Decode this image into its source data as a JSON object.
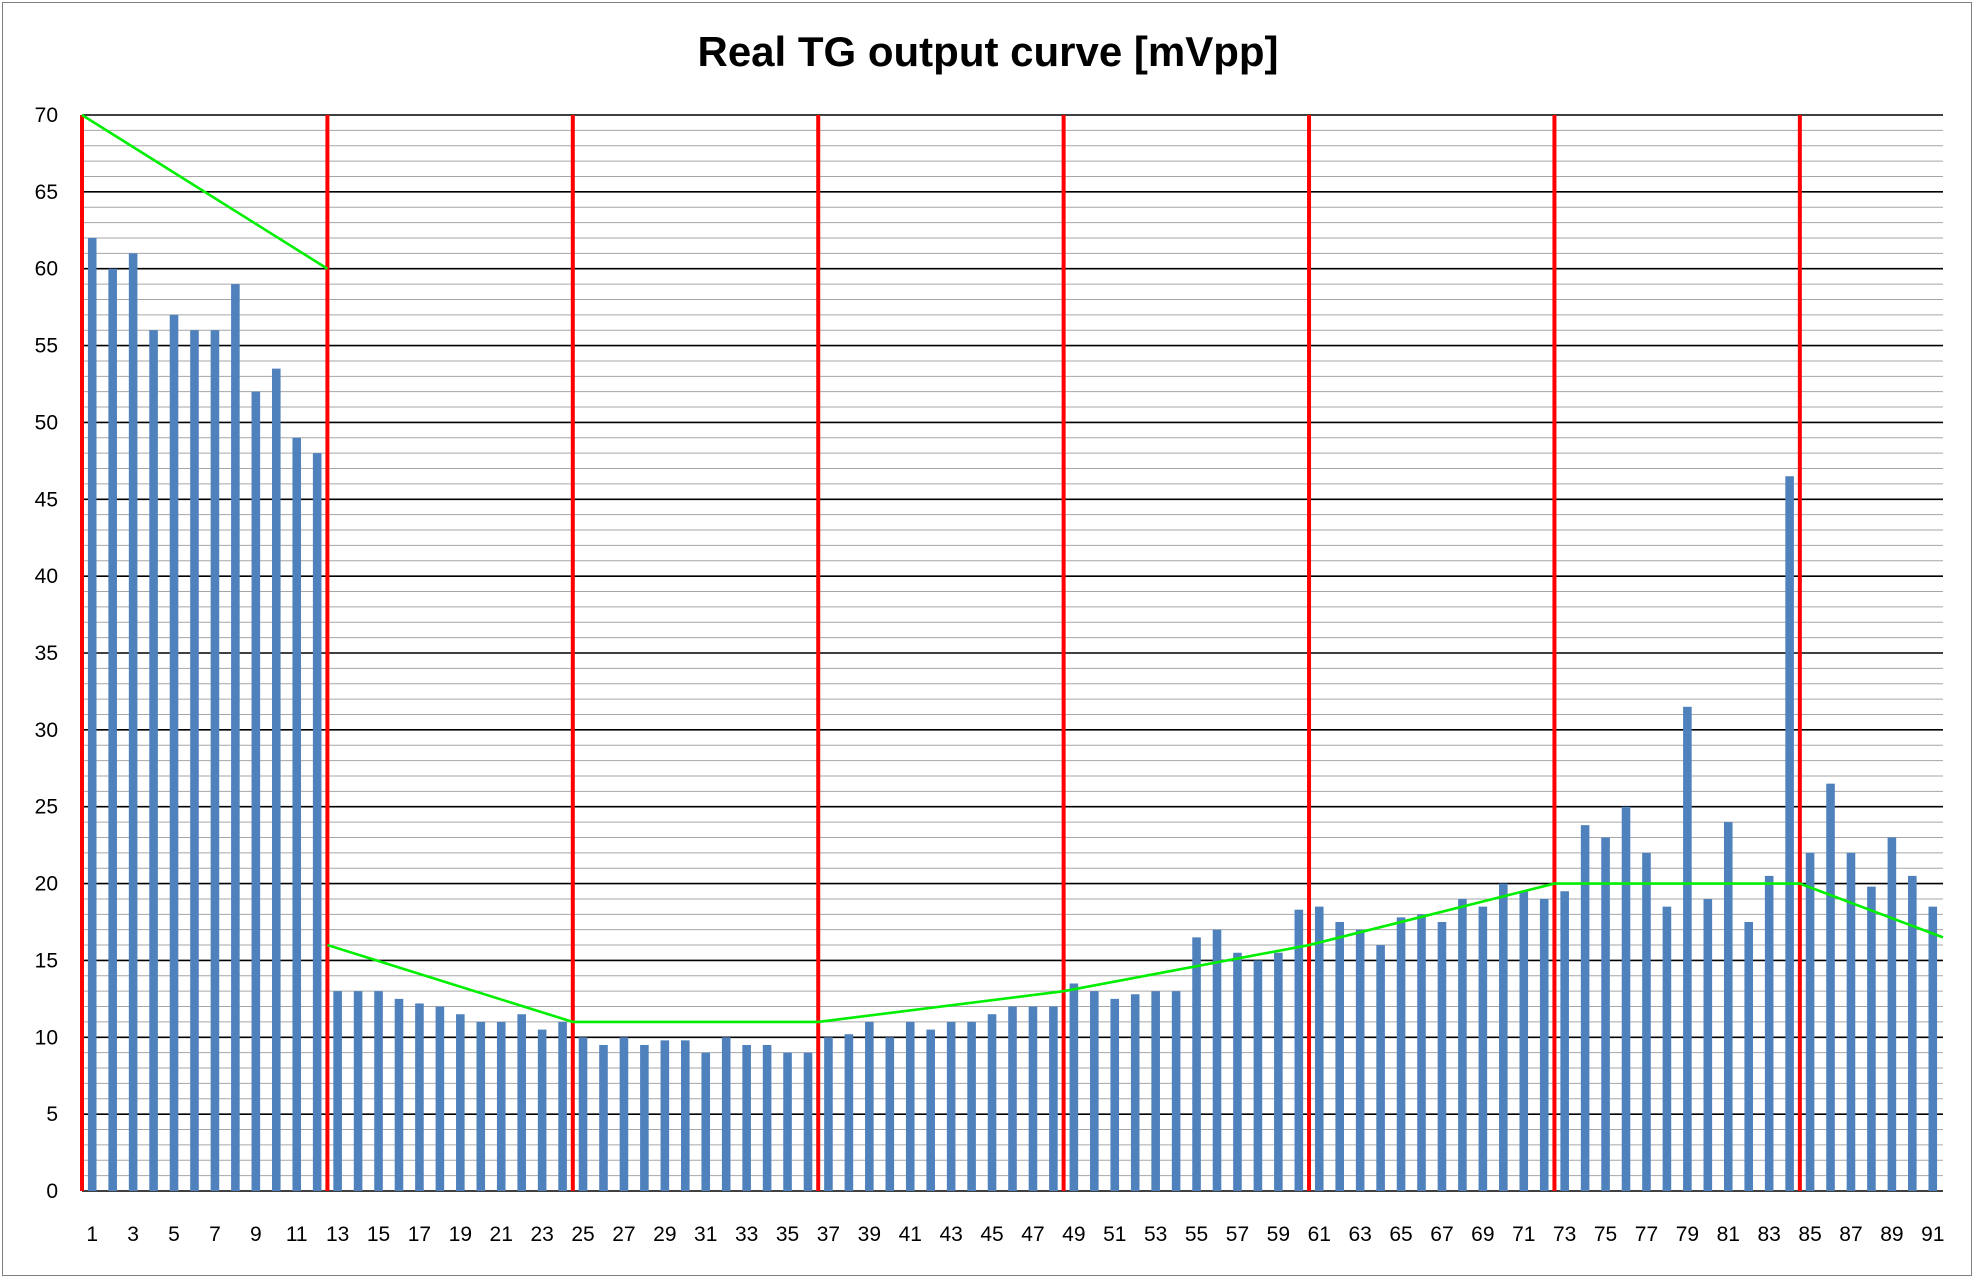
{
  "chart_data": {
    "type": "bar",
    "title": "Real TG output curve [mVpp]",
    "xlabel": "",
    "ylabel": "",
    "ylim": [
      0,
      70
    ],
    "y_major_step": 5,
    "y_minor_step": 1,
    "grid": true,
    "legend": "none",
    "categories": [
      1,
      2,
      3,
      4,
      5,
      6,
      7,
      8,
      9,
      10,
      11,
      12,
      13,
      14,
      15,
      16,
      17,
      18,
      19,
      20,
      21,
      22,
      23,
      24,
      25,
      26,
      27,
      28,
      29,
      30,
      31,
      32,
      33,
      34,
      35,
      36,
      37,
      38,
      39,
      40,
      41,
      42,
      43,
      44,
      45,
      46,
      47,
      48,
      49,
      50,
      51,
      52,
      53,
      54,
      55,
      56,
      57,
      58,
      59,
      60,
      61,
      62,
      63,
      64,
      65,
      66,
      67,
      68,
      69,
      70,
      71,
      72,
      73,
      74,
      75,
      76,
      77,
      78,
      79,
      80,
      81,
      82,
      83,
      84,
      85,
      86,
      87,
      88,
      89,
      90,
      91
    ],
    "x_tick_labels": [
      "1",
      "3",
      "5",
      "7",
      "9",
      "11",
      "13",
      "15",
      "17",
      "19",
      "21",
      "23",
      "25",
      "27",
      "29",
      "31",
      "33",
      "35",
      "37",
      "39",
      "41",
      "43",
      "45",
      "47",
      "49",
      "51",
      "53",
      "55",
      "57",
      "59",
      "61",
      "63",
      "65",
      "67",
      "69",
      "71",
      "73",
      "75",
      "77",
      "79",
      "81",
      "83",
      "85",
      "87",
      "89",
      "91"
    ],
    "y_tick_labels": [
      "0",
      "5",
      "10",
      "15",
      "20",
      "25",
      "30",
      "35",
      "40",
      "45",
      "50",
      "55",
      "60",
      "65",
      "70"
    ],
    "series": [
      {
        "values": [
          62,
          60,
          61,
          56,
          57,
          56,
          56,
          59,
          52,
          53.5,
          49,
          48,
          13,
          13,
          13,
          12.5,
          12.2,
          12,
          11.5,
          11,
          11,
          11.5,
          10.5,
          11,
          10,
          9.5,
          10,
          9.5,
          9.8,
          9.8,
          9,
          10,
          9.5,
          9.5,
          9,
          9,
          10,
          10.2,
          11,
          10,
          11,
          10.5,
          11,
          11,
          11.5,
          12,
          12,
          12,
          13.5,
          13,
          12.5,
          12.8,
          13,
          13,
          16.5,
          17,
          15.5,
          15,
          15.5,
          18.3,
          18.5,
          17.5,
          17,
          16,
          17.8,
          18,
          17.5,
          19,
          18.5,
          20,
          19.5,
          19,
          19.5,
          23.8,
          23,
          25,
          22,
          18.5,
          31.5,
          19,
          24,
          17.5,
          20.5,
          46.5,
          22,
          26.5,
          22,
          19.8,
          23,
          20.5,
          18.5
        ],
        "color": "#4f81bd"
      }
    ],
    "boundary_lines": {
      "color": "#ff0000",
      "x_positions": [
        0.5,
        12.5,
        24.5,
        36.5,
        48.5,
        60.5,
        72.5,
        84.5
      ]
    },
    "target_curve": {
      "color": "#00ee00",
      "segments": [
        [
          [
            0.5,
            70
          ],
          [
            12.5,
            60
          ]
        ],
        [
          [
            12.5,
            16
          ],
          [
            24.5,
            11
          ],
          [
            36.5,
            11
          ],
          [
            48.5,
            13
          ],
          [
            60.5,
            16
          ],
          [
            72.5,
            20
          ],
          [
            84.5,
            20
          ],
          [
            91.5,
            16.5
          ]
        ]
      ]
    }
  }
}
